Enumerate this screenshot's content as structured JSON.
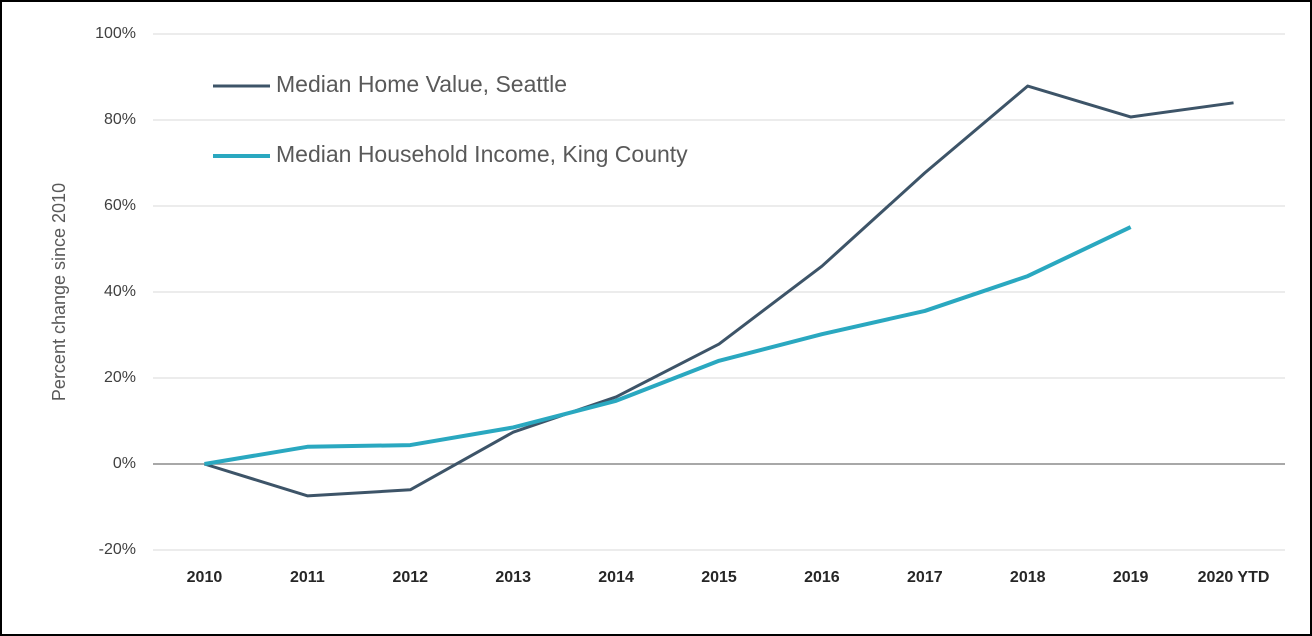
{
  "chart_data": {
    "type": "line",
    "y_label": "Percent change since 2010",
    "categories": [
      "2010",
      "2011",
      "2012",
      "2013",
      "2014",
      "2015",
      "2016",
      "2017",
      "2018",
      "2019",
      "2020 YTD"
    ],
    "series": [
      {
        "name": "Median Home Value, Seattle",
        "color": "#3d5468",
        "values": [
          0,
          -7.4,
          -6,
          7.4,
          15.6,
          27.9,
          46,
          67.7,
          87.9,
          80.7,
          84
        ]
      },
      {
        "name": "Median Household Income, King County",
        "color": "#2aa8c0",
        "values": [
          0,
          4,
          4.4,
          8.5,
          14.7,
          24,
          30.2,
          35.6,
          43.7,
          55.1,
          null
        ]
      }
    ],
    "ylim": [
      -20,
      100
    ],
    "yticks": [
      {
        "value": -20,
        "label": "-20%"
      },
      {
        "value": 0,
        "label": "0%"
      },
      {
        "value": 20,
        "label": "20%"
      },
      {
        "value": 40,
        "label": "40%"
      },
      {
        "value": 60,
        "label": "60%"
      },
      {
        "value": 80,
        "label": "80%"
      },
      {
        "value": 100,
        "label": "100%"
      }
    ],
    "grid": true,
    "legend": "upper left"
  }
}
